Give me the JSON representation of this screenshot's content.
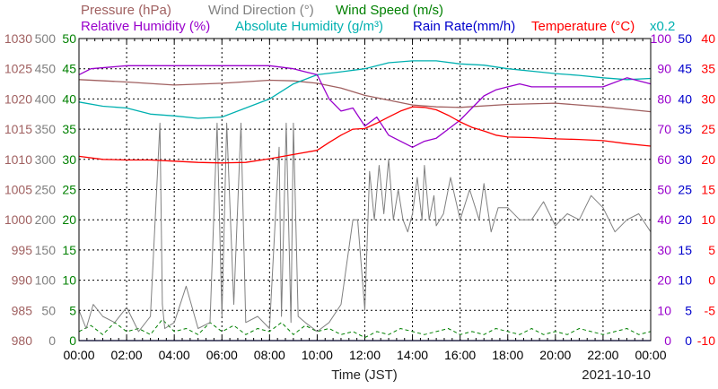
{
  "chart_data": {
    "type": "line",
    "date": "2021-10-10",
    "xlabel": "Time (JST)",
    "x_ticks": [
      "00:00",
      "02:00",
      "04:00",
      "06:00",
      "08:00",
      "10:00",
      "12:00",
      "14:00",
      "16:00",
      "18:00",
      "20:00",
      "22:00",
      "00:00"
    ],
    "grid": true,
    "legend": {
      "row1": [
        {
          "text": "Pressure (hPa)",
          "color": "#a06060"
        },
        {
          "text": "Wind Direction (°)",
          "color": "#808080"
        },
        {
          "text": "Wind Speed (m/s)",
          "color": "#008000"
        }
      ],
      "row2": [
        {
          "text": "Relative Humidity (%)",
          "color": "#9900cc"
        },
        {
          "text": "Absolute Humidity (g/m³)",
          "color": "#00b0b0"
        },
        {
          "text": "Rain Rate(mm/h)",
          "color": "#0000cc"
        },
        {
          "text": "Temperature (°C)",
          "color": "#ff0000"
        }
      ],
      "note": {
        "text": "x0.2",
        "color": "#00b0b0"
      }
    },
    "axes": {
      "pressure": {
        "color": "#a06060",
        "ticks": [
          "1030",
          "1025",
          "1020",
          "1015",
          "1010",
          "1005",
          "1000",
          "995",
          "990",
          "985",
          "980"
        ],
        "range": [
          980,
          1030
        ]
      },
      "wind_direction": {
        "color": "#808080",
        "ticks": [
          "500",
          "450",
          "400",
          "350",
          "300",
          "250",
          "200",
          "150",
          "100",
          "50",
          "0"
        ],
        "range": [
          0,
          500
        ]
      },
      "wind_speed": {
        "color": "#008000",
        "ticks": [
          "50",
          "45",
          "40",
          "35",
          "30",
          "25",
          "20",
          "15",
          "10",
          "5",
          "0"
        ],
        "range": [
          0,
          50
        ]
      },
      "relative_humidity": {
        "color": "#9900cc",
        "ticks": [
          "100",
          "90",
          "80",
          "70",
          "60",
          "50",
          "40",
          "30",
          "20",
          "10",
          "0"
        ],
        "range": [
          0,
          100
        ]
      },
      "rain_rate": {
        "color": "#0000cc",
        "ticks": [
          "50",
          "45",
          "40",
          "35",
          "30",
          "25",
          "20",
          "15",
          "10",
          "5",
          "0"
        ],
        "range": [
          0,
          50
        ]
      },
      "temperature": {
        "color": "#ff0000",
        "ticks": [
          "40",
          "35",
          "30",
          "25",
          "20",
          "15",
          "10",
          "5",
          "0",
          "-5",
          "-10"
        ],
        "range": [
          -10,
          40
        ]
      }
    },
    "series": [
      {
        "name": "Pressure (hPa)",
        "color": "#a06060",
        "axis": "pressure",
        "x": [
          0,
          2,
          4,
          6,
          8,
          9,
          10,
          11,
          12,
          13,
          14,
          15,
          16,
          18,
          20,
          22,
          24
        ],
        "y": [
          1023.2,
          1022.8,
          1022.3,
          1022.6,
          1023.1,
          1023.0,
          1022.6,
          1021.8,
          1020.6,
          1019.8,
          1019.0,
          1018.7,
          1018.6,
          1019.1,
          1019.3,
          1018.7,
          1017.9
        ]
      },
      {
        "name": "Wind Direction (°)",
        "color": "#808080",
        "axis": "wind_direction",
        "x": [
          0,
          0.3,
          0.6,
          1.0,
          1.5,
          2.0,
          2.5,
          3.0,
          3.4,
          3.5,
          3.6,
          4.0,
          4.5,
          5.0,
          5.5,
          5.8,
          6.0,
          6.2,
          6.5,
          6.8,
          7.0,
          7.5,
          8.0,
          8.4,
          8.5,
          8.7,
          8.9,
          9.0,
          9.2,
          9.5,
          10.0,
          10.5,
          11.0,
          11.5,
          11.7,
          12.0,
          12.2,
          12.4,
          12.6,
          12.8,
          13.0,
          13.2,
          13.4,
          13.6,
          13.8,
          14.0,
          14.2,
          14.4,
          14.5,
          14.7,
          14.9,
          15.0,
          15.3,
          15.6,
          16.0,
          16.4,
          16.8,
          17.0,
          17.3,
          17.6,
          18.0,
          18.5,
          19.0,
          19.5,
          20.0,
          20.5,
          21.0,
          21.5,
          22.0,
          22.5,
          23.0,
          23.5,
          24.0
        ],
        "y": [
          50,
          20,
          60,
          40,
          30,
          55,
          15,
          40,
          360,
          60,
          20,
          30,
          90,
          20,
          30,
          360,
          40,
          360,
          60,
          360,
          30,
          40,
          20,
          320,
          40,
          360,
          30,
          360,
          40,
          30,
          15,
          30,
          60,
          200,
          200,
          50,
          280,
          200,
          290,
          210,
          300,
          200,
          250,
          200,
          180,
          210,
          270,
          200,
          290,
          200,
          240,
          190,
          210,
          270,
          200,
          250,
          200,
          260,
          180,
          220,
          220,
          200,
          200,
          230,
          190,
          210,
          200,
          240,
          220,
          180,
          200,
          210,
          180
        ]
      },
      {
        "name": "Wind Speed (m/s)",
        "color": "#008000",
        "axis": "wind_speed",
        "x": [
          0,
          0.5,
          1.0,
          1.5,
          2.0,
          2.5,
          3.0,
          3.5,
          4.0,
          4.5,
          5.0,
          5.5,
          6.0,
          6.5,
          7.0,
          7.5,
          8.0,
          8.5,
          9.0,
          9.5,
          10.0,
          10.5,
          11.0,
          11.5,
          12.0,
          12.5,
          13.0,
          13.5,
          14.0,
          14.5,
          15.0,
          15.5,
          16.0,
          16.5,
          17.0,
          17.5,
          18.0,
          18.5,
          19.0,
          19.5,
          20.0,
          20.5,
          21.0,
          21.5,
          22.0,
          22.5,
          23.0,
          23.5,
          24.0
        ],
        "y": [
          1.5,
          2.5,
          1.0,
          3.0,
          1.5,
          2.0,
          1.0,
          3.5,
          1.5,
          2.0,
          1.0,
          3.0,
          1.5,
          2.5,
          1.0,
          2.0,
          1.5,
          3.0,
          1.0,
          2.5,
          1.5,
          2.0,
          1.0,
          1.5,
          0.5,
          1.5,
          1.0,
          2.0,
          1.5,
          1.0,
          1.5,
          2.0,
          1.0,
          1.5,
          1.0,
          2.0,
          1.5,
          1.0,
          2.0,
          1.0,
          1.5,
          1.0,
          2.0,
          1.5,
          1.0,
          1.5,
          2.0,
          1.0,
          1.5
        ]
      },
      {
        "name": "Relative Humidity (%)",
        "color": "#9900cc",
        "axis": "relative_humidity",
        "x": [
          0,
          0.5,
          2,
          4,
          6,
          8,
          9,
          9.5,
          10,
          10.5,
          11,
          11.5,
          12,
          12.5,
          13,
          13.5,
          14,
          14.5,
          15,
          15.5,
          16,
          16.5,
          17,
          17.5,
          18,
          18.5,
          19,
          19.5,
          20,
          21,
          22,
          23,
          24
        ],
        "y": [
          88,
          90,
          91,
          91,
          91,
          91,
          90,
          89,
          88,
          80,
          76,
          77,
          71,
          74,
          68,
          66,
          64,
          66,
          67,
          70,
          73,
          77,
          81,
          83,
          84,
          85,
          84,
          84,
          84,
          84,
          84,
          87,
          85
        ]
      },
      {
        "name": "Absolute Humidity (g/m³)",
        "color": "#00b0b0",
        "axis": "wind_speed",
        "x": [
          0,
          1,
          2,
          3,
          4,
          5,
          6,
          7,
          8,
          9,
          10,
          11,
          12,
          13,
          14,
          15,
          16,
          17,
          18,
          19,
          20,
          21,
          22,
          23,
          24
        ],
        "y": [
          39.5,
          38.8,
          38.5,
          37.5,
          37.2,
          36.8,
          37.0,
          38.5,
          40.0,
          42.5,
          44.0,
          44.5,
          45.0,
          46.0,
          46.3,
          46.3,
          45.8,
          45.6,
          45.0,
          44.6,
          44.2,
          43.9,
          43.5,
          43.2,
          43.4
        ]
      },
      {
        "name": "Rain Rate(mm/h)",
        "color": "#0000cc",
        "axis": "rain_rate",
        "x": [
          0,
          24
        ],
        "y": [
          0,
          0
        ]
      },
      {
        "name": "Temperature (°C)",
        "color": "#ff0000",
        "axis": "temperature",
        "x": [
          0,
          1,
          2,
          3,
          4,
          5,
          6,
          7,
          8,
          9,
          10,
          10.5,
          11,
          11.5,
          12,
          12.5,
          13,
          13.5,
          14,
          14.5,
          15,
          15.5,
          16,
          16.5,
          17,
          17.5,
          18,
          19,
          20,
          21,
          22,
          23,
          24
        ],
        "y": [
          20.5,
          20.0,
          19.9,
          19.9,
          19.7,
          19.5,
          19.4,
          19.5,
          20.1,
          20.8,
          21.5,
          22.8,
          24.0,
          25.0,
          25.1,
          26.0,
          27.0,
          28.0,
          28.7,
          28.6,
          28.2,
          27.3,
          26.2,
          25.3,
          24.7,
          24.0,
          23.7,
          23.6,
          23.4,
          23.3,
          23.1,
          22.6,
          22.2
        ]
      }
    ]
  }
}
